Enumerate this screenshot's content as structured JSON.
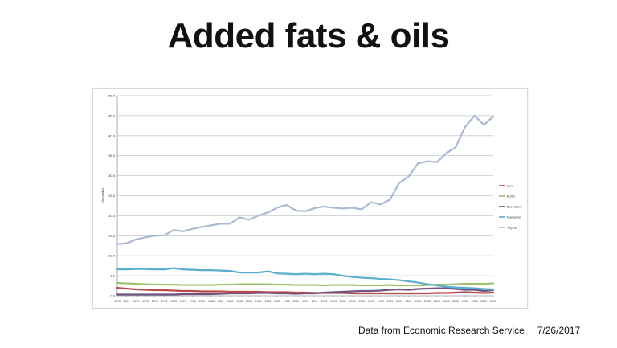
{
  "slide": {
    "title": "Added fats & oils",
    "source": "Data from Economic Research Service",
    "date": "7/26/2017"
  },
  "chart_data": {
    "type": "line",
    "ylabel": "Grams/day",
    "xlabel": "",
    "ylim": [
      0,
      50
    ],
    "yticks": [
      "0.0",
      "5.0",
      "10.0",
      "15.0",
      "20.0",
      "25.0",
      "30.0",
      "35.0",
      "40.0",
      "45.0",
      "50.0"
    ],
    "grid": true,
    "legend_position": "right",
    "x": [
      "1970",
      "1971",
      "1972",
      "1973",
      "1974",
      "1975",
      "1976",
      "1977",
      "1978",
      "1979",
      "1980",
      "1981",
      "1982",
      "1983",
      "1984",
      "1985",
      "1986",
      "1987",
      "1988",
      "1989",
      "1990",
      "1991",
      "1992",
      "1993",
      "1994",
      "1995",
      "1996",
      "1997",
      "1998",
      "1999",
      "2000",
      "2001",
      "2002",
      "2003",
      "2004",
      "2005",
      "2006",
      "2007",
      "2008",
      "2009",
      "2010"
    ],
    "series": [
      {
        "name": "Lard",
        "color": "#b94a4a",
        "values": [
          2.0,
          1.8,
          1.6,
          1.5,
          1.4,
          1.4,
          1.3,
          1.2,
          1.2,
          1.1,
          1.1,
          1.1,
          1.0,
          1.0,
          1.0,
          1.0,
          0.9,
          0.9,
          0.9,
          0.8,
          0.8,
          0.7,
          0.7,
          0.7,
          0.7,
          0.6,
          0.6,
          0.6,
          0.6,
          0.6,
          0.6,
          0.6,
          0.6,
          0.6,
          0.7,
          0.7,
          0.8,
          0.9,
          0.8,
          0.7,
          0.8
        ]
      },
      {
        "name": "Butter",
        "color": "#9fc06a",
        "values": [
          3.2,
          3.1,
          3.0,
          2.9,
          2.8,
          2.8,
          2.8,
          2.7,
          2.7,
          2.7,
          2.7,
          2.8,
          2.8,
          2.9,
          2.9,
          2.9,
          2.9,
          2.8,
          2.8,
          2.7,
          2.7,
          2.7,
          2.6,
          2.7,
          2.7,
          2.7,
          2.6,
          2.6,
          2.6,
          2.7,
          2.6,
          2.6,
          2.6,
          2.7,
          2.8,
          2.8,
          2.9,
          3.0,
          3.0,
          3.0,
          3.1
        ]
      },
      {
        "name": "Beef tallow",
        "color": "#6e5580",
        "values": [
          0.3,
          0.3,
          0.3,
          0.3,
          0.3,
          0.3,
          0.3,
          0.4,
          0.4,
          0.4,
          0.4,
          0.5,
          0.6,
          0.6,
          0.6,
          0.7,
          0.7,
          0.6,
          0.6,
          0.5,
          0.6,
          0.6,
          0.8,
          0.9,
          1.0,
          1.1,
          1.2,
          1.2,
          1.3,
          1.5,
          1.6,
          1.5,
          1.7,
          1.8,
          1.9,
          1.9,
          1.7,
          1.5,
          1.5,
          1.2,
          1.4
        ]
      },
      {
        "name": "Margarine",
        "color": "#5aaed0",
        "values": [
          6.6,
          6.6,
          6.7,
          6.7,
          6.6,
          6.6,
          6.9,
          6.6,
          6.5,
          6.4,
          6.4,
          6.3,
          6.2,
          5.8,
          5.8,
          5.8,
          6.1,
          5.6,
          5.5,
          5.4,
          5.5,
          5.4,
          5.5,
          5.4,
          5.0,
          4.7,
          4.5,
          4.4,
          4.2,
          4.1,
          3.9,
          3.6,
          3.3,
          2.9,
          2.6,
          2.3,
          2.1,
          2.0,
          1.9,
          1.7,
          1.6
        ]
      },
      {
        "name": "Veg oils",
        "color": "#a9b9d4",
        "values": [
          12.9,
          13.1,
          14.1,
          14.6,
          15.0,
          15.1,
          16.4,
          16.1,
          16.7,
          17.2,
          17.6,
          18.0,
          18.0,
          19.6,
          19.0,
          20.0,
          20.8,
          22.0,
          22.7,
          21.3,
          21.1,
          21.9,
          22.3,
          22.0,
          21.8,
          22.0,
          21.6,
          23.4,
          22.8,
          24.0,
          28.2,
          29.8,
          33.1,
          33.6,
          33.4,
          35.6,
          37.1,
          42.2,
          45.0,
          42.7,
          44.8
        ]
      }
    ]
  }
}
